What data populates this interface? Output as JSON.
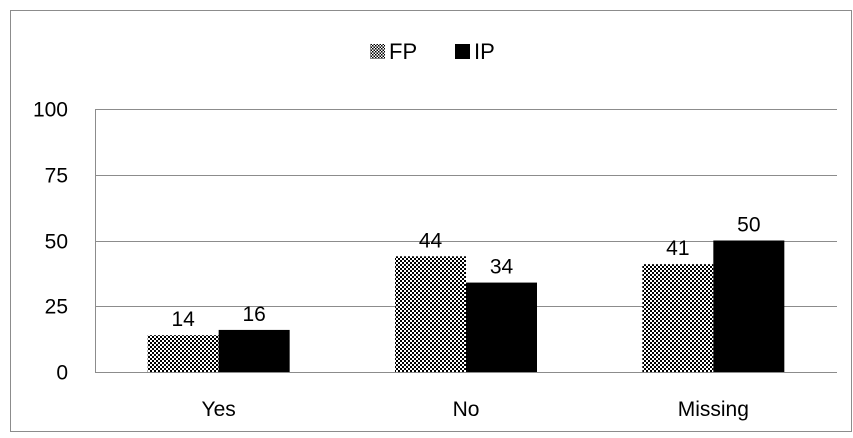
{
  "chart_data": {
    "type": "bar",
    "title": "",
    "xlabel": "",
    "ylabel": "",
    "categories": [
      "Yes",
      "No",
      "Missing"
    ],
    "series": [
      {
        "name": "FP",
        "values": [
          14,
          44,
          41
        ],
        "pattern": "checkerboard",
        "color": "#000000"
      },
      {
        "name": "IP",
        "values": [
          16,
          34,
          50
        ],
        "pattern": "solid",
        "color": "#000000"
      }
    ],
    "ylim": [
      0,
      100
    ],
    "yticks": [
      "0",
      "25",
      "50",
      "75",
      "100"
    ],
    "data_labels": [
      [
        "14",
        "44",
        "41"
      ],
      [
        "16",
        "34",
        "50"
      ]
    ],
    "grid": true,
    "legend_position": "top-center"
  }
}
